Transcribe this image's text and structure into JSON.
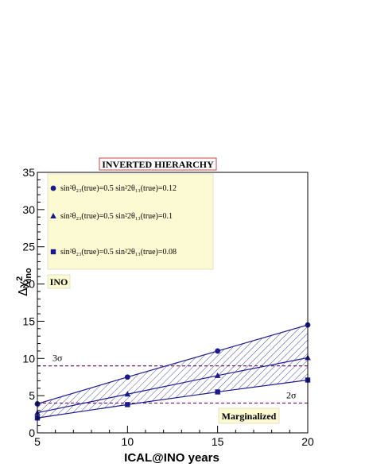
{
  "chart_data": {
    "type": "line",
    "title": "INVERTED HIERARCHY",
    "xlabel": "ICAL@INO years",
    "ylabel_main": "Δχ",
    "ylabel_sup": "2",
    "ylabel_sub": "ino",
    "xlim": [
      5,
      20
    ],
    "ylim": [
      0,
      35
    ],
    "x_ticks": [
      5,
      10,
      15,
      20
    ],
    "y_ticks": [
      0,
      5,
      10,
      15,
      20,
      25,
      30,
      35
    ],
    "x": [
      5,
      10,
      15,
      20
    ],
    "series": [
      {
        "name": "sin²θ₂₃(true)=0.5   sin²2θ₁₃(true)=0.12",
        "marker": "circle",
        "values": [
          3.9,
          7.5,
          11.0,
          14.5
        ]
      },
      {
        "name": "sin²θ₂₃(true)=0.5   sin²2θ₁₃(true)=0.1",
        "marker": "triangle",
        "values": [
          2.7,
          5.2,
          7.7,
          10.1
        ]
      },
      {
        "name": "sin²θ₂₃(true)=0.5   sin²2θ₁₃(true)=0.08",
        "marker": "square",
        "values": [
          2.0,
          3.8,
          5.5,
          7.1
        ]
      }
    ],
    "shaded_band": {
      "between": [
        "series.0",
        "series.2"
      ],
      "pattern": "hatched"
    },
    "reference_lines": [
      {
        "y": 9,
        "label": "3σ",
        "style": "dashed",
        "color": "#7a1f6a"
      },
      {
        "y": 4,
        "label": "2σ",
        "style": "dashed",
        "color": "#7a1f6a"
      }
    ],
    "annotations": [
      "INO",
      "Marginalized"
    ],
    "legend_position": "top-left",
    "grid": false,
    "colors": {
      "series": "#1a1a8c",
      "reference": "#7a1f6a",
      "legend_bg": "#fcfad2",
      "title_border": "#d04040"
    }
  }
}
